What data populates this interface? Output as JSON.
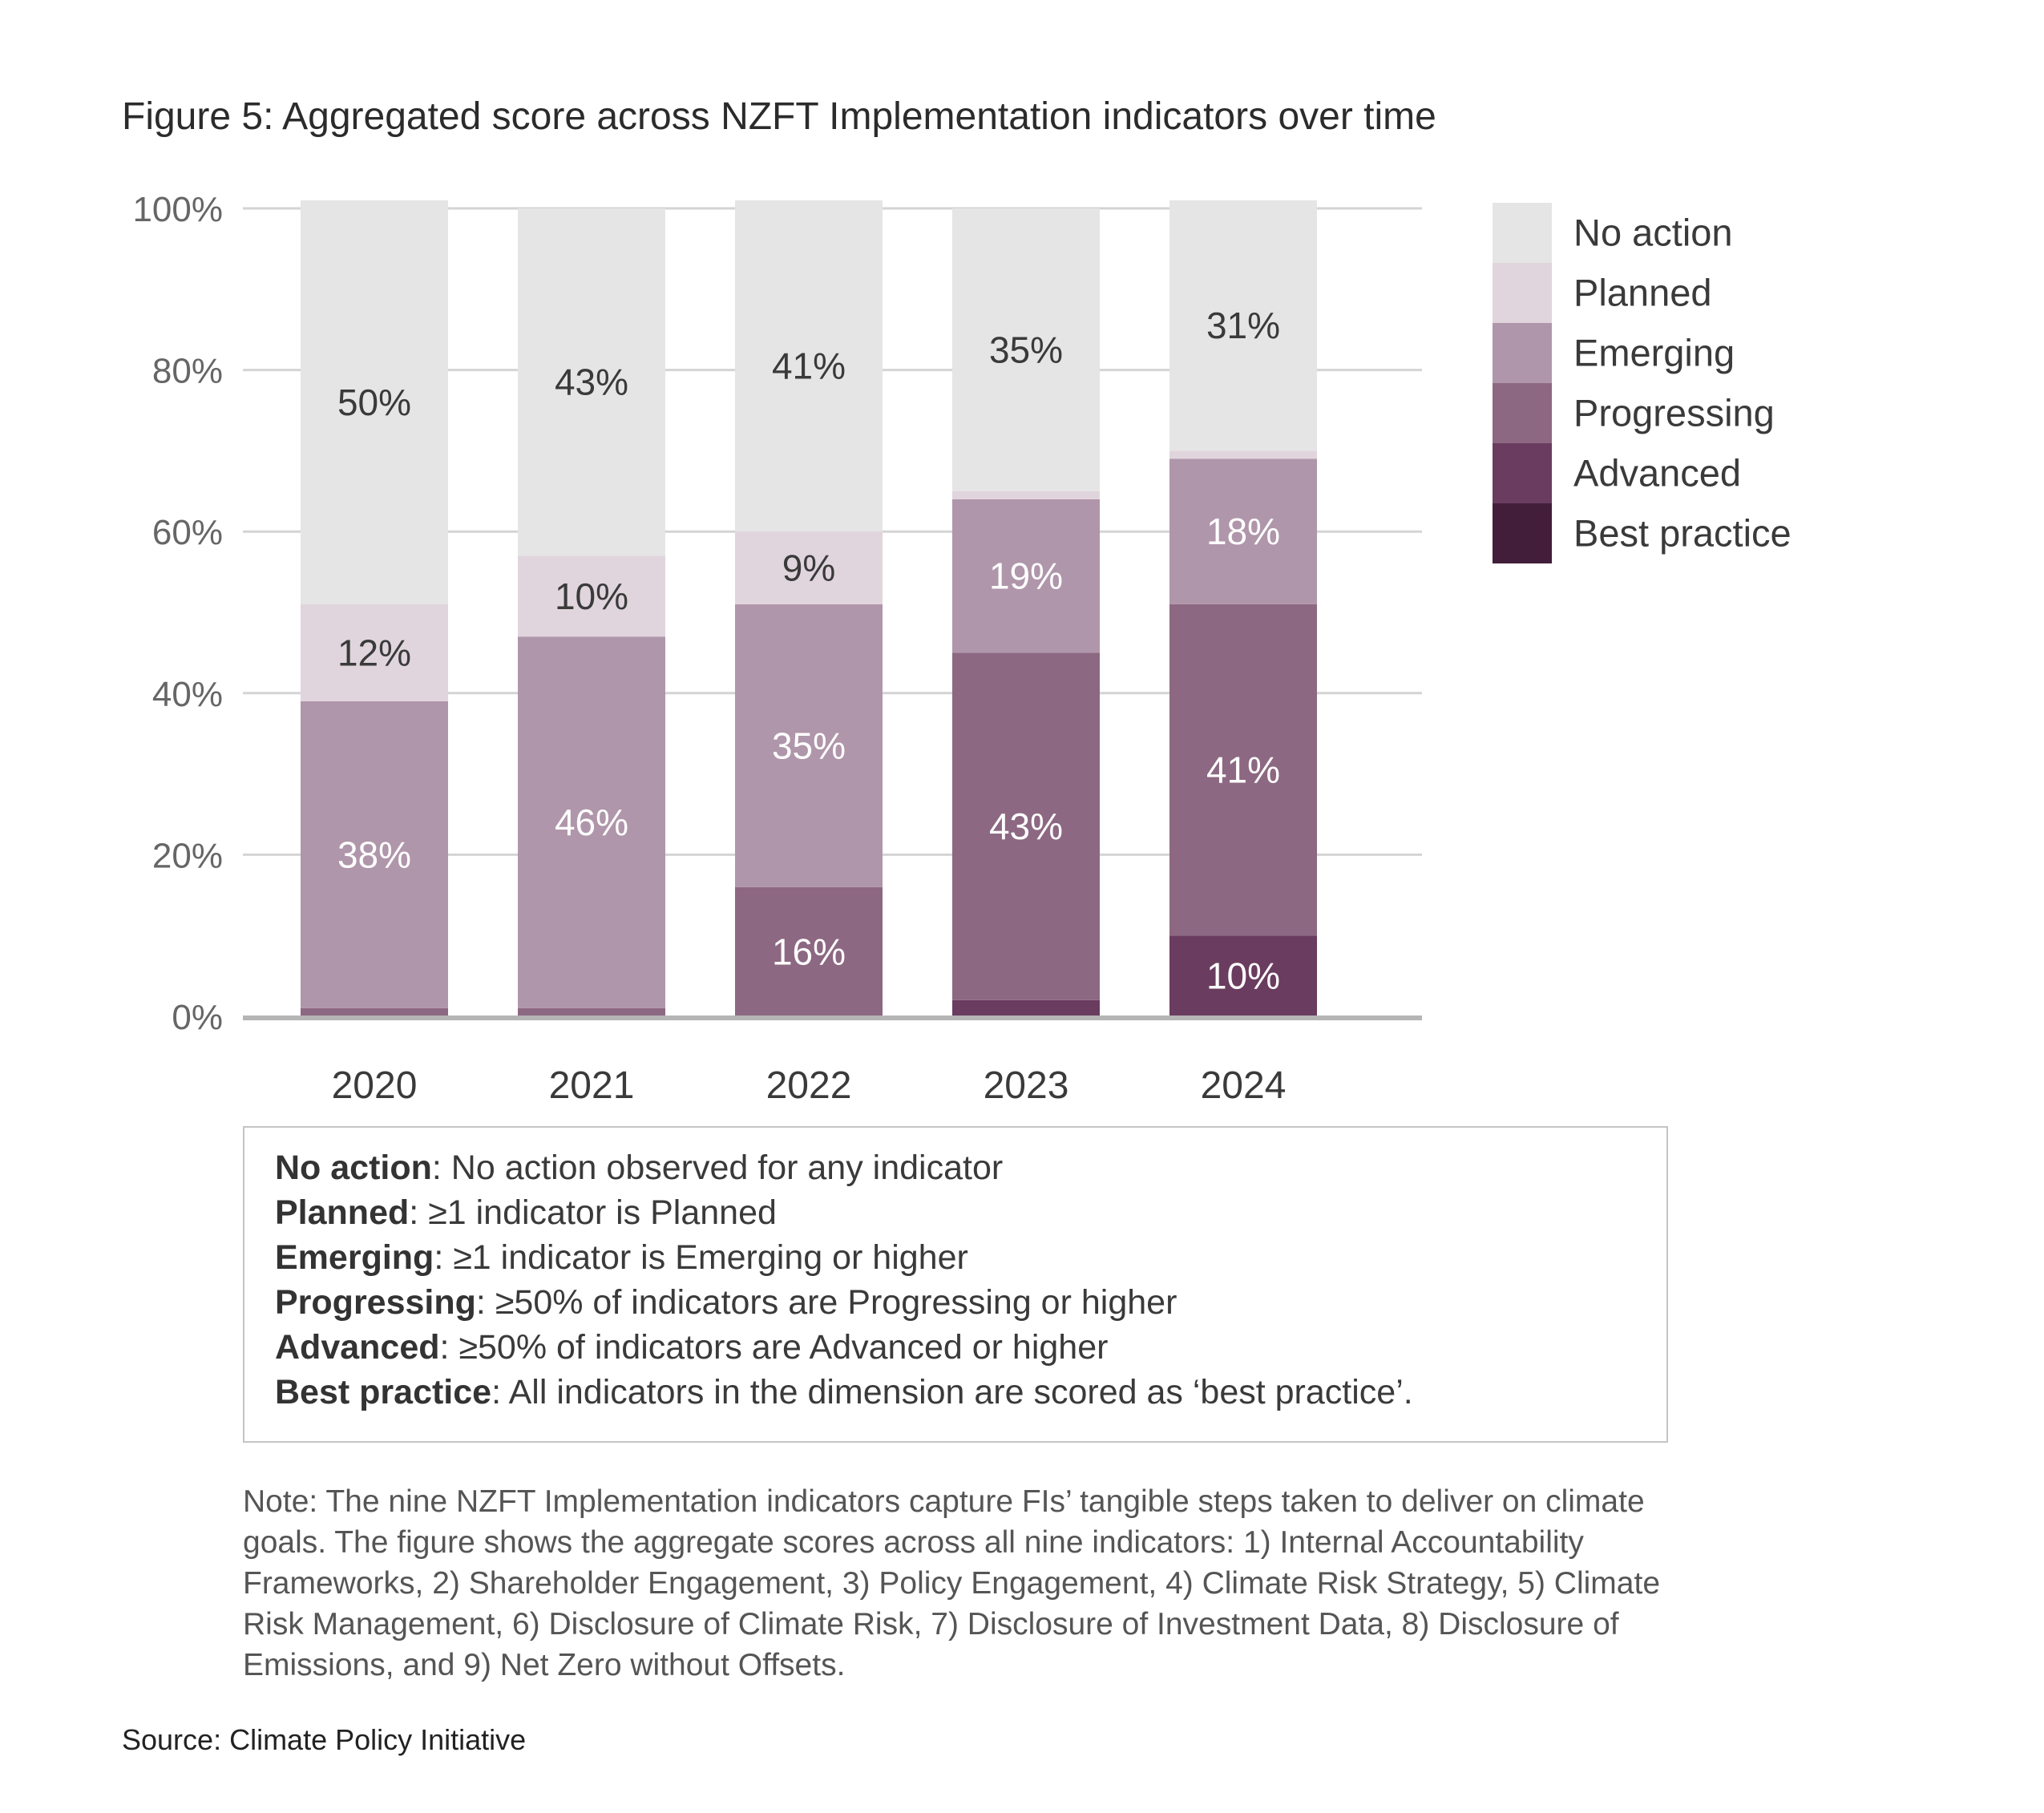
{
  "header": {
    "title": "Figure 5: Aggregated score across NZFT Implementation indicators over time"
  },
  "chart_data": {
    "type": "bar",
    "stacked": true,
    "title": "Figure 5: Aggregated score across NZFT Implementation indicators over time",
    "xlabel": "",
    "ylabel": "",
    "ylim": [
      0,
      100
    ],
    "y_ticks": [
      "0%",
      "20%",
      "40%",
      "60%",
      "80%",
      "100%"
    ],
    "y_tick_values": [
      0,
      20,
      40,
      60,
      80,
      100
    ],
    "grid": true,
    "legend_position": "right",
    "categories": [
      "2020",
      "2021",
      "2022",
      "2023",
      "2024"
    ],
    "series": [
      {
        "name": "Best practice",
        "color": "#431e3b",
        "values": [
          0,
          0,
          0,
          0,
          0
        ],
        "labels": [
          "",
          "",
          "",
          "",
          ""
        ],
        "label_color": "#ffffff"
      },
      {
        "name": "Advanced",
        "color": "#6a3c5f",
        "values": [
          0,
          0,
          0,
          2,
          10
        ],
        "labels": [
          "",
          "",
          "",
          "",
          "10%"
        ],
        "label_color": "#ffffff"
      },
      {
        "name": "Progressing",
        "color": "#8d6882",
        "values": [
          1,
          1,
          16,
          43,
          41
        ],
        "labels": [
          "",
          "",
          "16%",
          "43%",
          "41%"
        ],
        "label_color": "#ffffff"
      },
      {
        "name": "Emerging",
        "color": "#b096aa",
        "values": [
          38,
          46,
          35,
          19,
          18
        ],
        "labels": [
          "38%",
          "46%",
          "35%",
          "19%",
          "18%"
        ],
        "label_color": "#ffffff"
      },
      {
        "name": "Planned",
        "color": "#e0d5dc",
        "values": [
          12,
          10,
          9,
          1,
          1
        ],
        "labels": [
          "12%",
          "10%",
          "9%",
          "",
          ""
        ],
        "label_color": "#3a3a3a"
      },
      {
        "name": "No action",
        "color": "#e5e5e5",
        "values": [
          50,
          43,
          41,
          35,
          31
        ],
        "labels": [
          "50%",
          "43%",
          "41%",
          "35%",
          "31%"
        ],
        "label_color": "#3a3a3a"
      }
    ],
    "legend": [
      "No action",
      "Planned",
      "Emerging",
      "Progressing",
      "Advanced",
      "Best practice"
    ]
  },
  "definitions": [
    {
      "term": "No action",
      "text": ": No action observed for any indicator"
    },
    {
      "term": "Planned",
      "text": ": ≥1 indicator is Planned"
    },
    {
      "term": "Emerging",
      "text": ": ≥1 indicator is Emerging or higher"
    },
    {
      "term": "Progressing",
      "text": ": ≥50% of indicators are Progressing or higher"
    },
    {
      "term": "Advanced",
      "text": ": ≥50% of indicators are Advanced or higher"
    },
    {
      "term": "Best practice",
      "text": ": All indicators in the dimension are scored as ‘best practice’."
    }
  ],
  "note": "Note: The nine NZFT Implementation indicators capture FIs’ tangible steps taken to deliver on climate goals. The figure shows the aggregate scores across all nine indicators: 1) Internal Accountability Frameworks, 2) Shareholder Engagement, 3) Policy Engagement, 4) Climate Risk Strategy, 5) Climate Risk Management, 6) Disclosure of Climate Risk, 7) Disclosure of Investment Data, 8) Disclosure of Emissions, and 9) Net Zero without Offsets.",
  "source": "Source: Climate Policy Initiative"
}
